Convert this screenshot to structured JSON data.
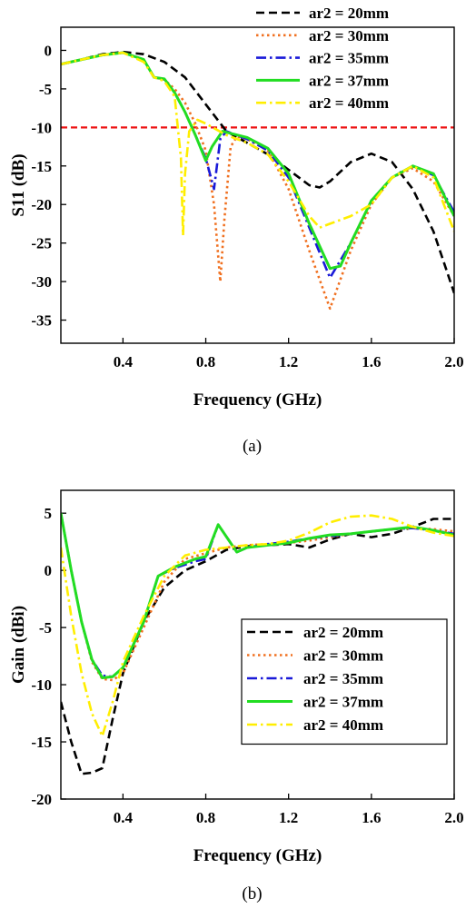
{
  "chart_data": [
    {
      "type": "line",
      "caption": "(a)",
      "xlabel": "Frequency (GHz)",
      "ylabel": "S11 (dB)",
      "xlim": [
        0.1,
        2.0
      ],
      "ylim": [
        -38,
        3
      ],
      "xticks": [
        0.4,
        0.8,
        1.2,
        1.6,
        2.0
      ],
      "xtick_labels": [
        "0.4",
        "0.8",
        "1.2",
        "1.6",
        "2.0"
      ],
      "yticks": [
        0,
        -5,
        -10,
        -15,
        -20,
        -25,
        -30,
        -35
      ],
      "ytick_labels": [
        "0",
        "-5",
        "-10",
        "-15",
        "-20",
        "-25",
        "-30",
        "-35"
      ],
      "legend_placement": "top-right outside plot",
      "grid": false,
      "reference_line": {
        "y": -10,
        "color": "#ee1111",
        "style": "dashed"
      },
      "series": [
        {
          "name": "ar2 = 20mm",
          "color": "#000000",
          "dash": "dash",
          "points": [
            [
              0.1,
              -1.8
            ],
            [
              0.2,
              -1.2
            ],
            [
              0.3,
              -0.5
            ],
            [
              0.4,
              -0.2
            ],
            [
              0.5,
              -0.5
            ],
            [
              0.6,
              -1.5
            ],
            [
              0.7,
              -3.5
            ],
            [
              0.8,
              -7.0
            ],
            [
              0.9,
              -10.5
            ],
            [
              1.0,
              -12.0
            ],
            [
              1.1,
              -13.5
            ],
            [
              1.2,
              -15.5
            ],
            [
              1.3,
              -17.5
            ],
            [
              1.35,
              -17.8
            ],
            [
              1.4,
              -17.0
            ],
            [
              1.5,
              -14.5
            ],
            [
              1.6,
              -13.4
            ],
            [
              1.7,
              -14.5
            ],
            [
              1.8,
              -18.0
            ],
            [
              1.9,
              -23.5
            ],
            [
              2.0,
              -31.5
            ]
          ]
        },
        {
          "name": "ar2 = 30mm",
          "color": "#f07020",
          "dash": "dot",
          "points": [
            [
              0.1,
              -1.8
            ],
            [
              0.2,
              -1.2
            ],
            [
              0.3,
              -0.6
            ],
            [
              0.4,
              -0.3
            ],
            [
              0.5,
              -1.2
            ],
            [
              0.55,
              -3.5
            ],
            [
              0.6,
              -3.8
            ],
            [
              0.65,
              -5.0
            ],
            [
              0.7,
              -6.8
            ],
            [
              0.75,
              -9.5
            ],
            [
              0.8,
              -13.0
            ],
            [
              0.84,
              -20.0
            ],
            [
              0.87,
              -30.0
            ],
            [
              0.89,
              -22.0
            ],
            [
              0.92,
              -12.5
            ],
            [
              0.95,
              -11.2
            ],
            [
              1.0,
              -11.5
            ],
            [
              1.1,
              -13.0
            ],
            [
              1.2,
              -18.0
            ],
            [
              1.3,
              -26.0
            ],
            [
              1.4,
              -33.5
            ],
            [
              1.5,
              -26.0
            ],
            [
              1.6,
              -20.0
            ],
            [
              1.7,
              -16.5
            ],
            [
              1.8,
              -15.3
            ],
            [
              1.9,
              -17.0
            ],
            [
              2.0,
              -21.5
            ]
          ]
        },
        {
          "name": "ar2 = 35mm",
          "color": "#1a1ad8",
          "dash": "dashdot",
          "points": [
            [
              0.1,
              -1.8
            ],
            [
              0.2,
              -1.2
            ],
            [
              0.3,
              -0.6
            ],
            [
              0.4,
              -0.3
            ],
            [
              0.5,
              -1.2
            ],
            [
              0.55,
              -3.5
            ],
            [
              0.6,
              -3.7
            ],
            [
              0.65,
              -5.5
            ],
            [
              0.7,
              -8.0
            ],
            [
              0.75,
              -11.0
            ],
            [
              0.8,
              -14.0
            ],
            [
              0.84,
              -18.0
            ],
            [
              0.87,
              -11.5
            ],
            [
              0.9,
              -10.5
            ],
            [
              1.0,
              -11.5
            ],
            [
              1.1,
              -13.0
            ],
            [
              1.2,
              -16.5
            ],
            [
              1.3,
              -23.0
            ],
            [
              1.4,
              -29.5
            ],
            [
              1.5,
              -25.0
            ],
            [
              1.6,
              -19.5
            ],
            [
              1.7,
              -16.5
            ],
            [
              1.8,
              -15.0
            ],
            [
              1.9,
              -16.2
            ],
            [
              2.0,
              -21.0
            ]
          ]
        },
        {
          "name": "ar2 = 37mm",
          "color": "#22dd22",
          "dash": "solid",
          "points": [
            [
              0.1,
              -1.8
            ],
            [
              0.2,
              -1.2
            ],
            [
              0.3,
              -0.6
            ],
            [
              0.4,
              -0.3
            ],
            [
              0.5,
              -1.2
            ],
            [
              0.55,
              -3.5
            ],
            [
              0.6,
              -3.7
            ],
            [
              0.65,
              -5.5
            ],
            [
              0.7,
              -8.0
            ],
            [
              0.75,
              -11.0
            ],
            [
              0.8,
              -14.3
            ],
            [
              0.83,
              -12.5
            ],
            [
              0.88,
              -10.5
            ],
            [
              1.0,
              -11.3
            ],
            [
              1.1,
              -12.7
            ],
            [
              1.2,
              -16.0
            ],
            [
              1.3,
              -22.5
            ],
            [
              1.4,
              -28.3
            ],
            [
              1.45,
              -28.0
            ],
            [
              1.5,
              -25.0
            ],
            [
              1.6,
              -19.5
            ],
            [
              1.7,
              -16.5
            ],
            [
              1.8,
              -15.0
            ],
            [
              1.9,
              -16.0
            ],
            [
              2.0,
              -21.5
            ]
          ]
        },
        {
          "name": "ar2 = 40mm",
          "color": "#ffee00",
          "dash": "dashdot",
          "points": [
            [
              0.1,
              -1.8
            ],
            [
              0.2,
              -1.2
            ],
            [
              0.3,
              -0.6
            ],
            [
              0.4,
              -0.3
            ],
            [
              0.5,
              -1.5
            ],
            [
              0.55,
              -3.5
            ],
            [
              0.6,
              -4.0
            ],
            [
              0.65,
              -6.0
            ],
            [
              0.68,
              -14.0
            ],
            [
              0.69,
              -24.0
            ],
            [
              0.7,
              -16.0
            ],
            [
              0.72,
              -10.5
            ],
            [
              0.76,
              -9.0
            ],
            [
              0.8,
              -9.5
            ],
            [
              0.9,
              -11.0
            ],
            [
              1.0,
              -12.0
            ],
            [
              1.1,
              -13.5
            ],
            [
              1.2,
              -17.0
            ],
            [
              1.3,
              -21.5
            ],
            [
              1.35,
              -23.0
            ],
            [
              1.4,
              -22.5
            ],
            [
              1.5,
              -21.5
            ],
            [
              1.6,
              -20.0
            ],
            [
              1.7,
              -16.5
            ],
            [
              1.8,
              -15.0
            ],
            [
              1.9,
              -16.5
            ],
            [
              2.0,
              -23.5
            ]
          ]
        }
      ]
    },
    {
      "type": "line",
      "caption": "(b)",
      "xlabel": "Frequency (GHz)",
      "ylabel": "Gain (dBi)",
      "xlim": [
        0.1,
        2.0
      ],
      "ylim": [
        -20,
        7
      ],
      "xticks": [
        0.4,
        0.8,
        1.2,
        1.6,
        2.0
      ],
      "xtick_labels": [
        "0.4",
        "0.8",
        "1.2",
        "1.6",
        "2.0"
      ],
      "yticks": [
        5,
        0,
        -5,
        -10,
        -15,
        -20
      ],
      "ytick_labels": [
        "5",
        "0",
        "-5",
        "-10",
        "-15",
        "-20"
      ],
      "legend_placement": "lower-right inside plot, boxed",
      "grid": false,
      "series": [
        {
          "name": "ar2 = 20mm",
          "color": "#000000",
          "dash": "dash",
          "points": [
            [
              0.1,
              -11.5
            ],
            [
              0.15,
              -15.0
            ],
            [
              0.2,
              -17.8
            ],
            [
              0.25,
              -17.7
            ],
            [
              0.3,
              -17.3
            ],
            [
              0.35,
              -13.0
            ],
            [
              0.4,
              -9.0
            ],
            [
              0.5,
              -4.5
            ],
            [
              0.6,
              -1.5
            ],
            [
              0.7,
              0.0
            ],
            [
              0.8,
              0.8
            ],
            [
              0.9,
              1.8
            ],
            [
              1.0,
              2.1
            ],
            [
              1.1,
              2.2
            ],
            [
              1.2,
              2.3
            ],
            [
              1.3,
              2.0
            ],
            [
              1.4,
              2.7
            ],
            [
              1.5,
              3.2
            ],
            [
              1.6,
              2.9
            ],
            [
              1.7,
              3.2
            ],
            [
              1.8,
              3.8
            ],
            [
              1.9,
              4.5
            ],
            [
              2.0,
              4.5
            ]
          ]
        },
        {
          "name": "ar2 = 30mm",
          "color": "#f07020",
          "dash": "dot",
          "points": [
            [
              0.1,
              5.0
            ],
            [
              0.15,
              0.0
            ],
            [
              0.2,
              -4.5
            ],
            [
              0.25,
              -8.0
            ],
            [
              0.3,
              -9.5
            ],
            [
              0.35,
              -9.6
            ],
            [
              0.4,
              -9.0
            ],
            [
              0.5,
              -5.0
            ],
            [
              0.6,
              -1.0
            ],
            [
              0.7,
              1.0
            ],
            [
              0.8,
              1.5
            ],
            [
              0.86,
              1.8
            ],
            [
              0.9,
              2.0
            ],
            [
              1.0,
              2.2
            ],
            [
              1.1,
              2.3
            ],
            [
              1.2,
              2.4
            ],
            [
              1.3,
              2.6
            ],
            [
              1.4,
              2.9
            ],
            [
              1.5,
              3.2
            ],
            [
              1.6,
              3.4
            ],
            [
              1.7,
              3.6
            ],
            [
              1.8,
              3.7
            ],
            [
              1.9,
              3.6
            ],
            [
              2.0,
              3.4
            ]
          ]
        },
        {
          "name": "ar2 = 35mm",
          "color": "#1a1ad8",
          "dash": "dashdot",
          "points": [
            [
              0.1,
              5.0
            ],
            [
              0.15,
              0.0
            ],
            [
              0.2,
              -4.5
            ],
            [
              0.25,
              -7.8
            ],
            [
              0.3,
              -9.2
            ],
            [
              0.35,
              -9.3
            ],
            [
              0.4,
              -8.5
            ],
            [
              0.5,
              -4.5
            ],
            [
              0.57,
              -0.5
            ],
            [
              0.65,
              0.2
            ],
            [
              0.75,
              0.8
            ],
            [
              0.8,
              1.0
            ],
            [
              0.86,
              4.0
            ],
            [
              0.95,
              1.6
            ],
            [
              1.0,
              2.0
            ],
            [
              1.1,
              2.3
            ],
            [
              1.2,
              2.5
            ],
            [
              1.3,
              2.8
            ],
            [
              1.4,
              3.0
            ],
            [
              1.5,
              3.2
            ],
            [
              1.6,
              3.4
            ],
            [
              1.7,
              3.6
            ],
            [
              1.8,
              3.7
            ],
            [
              1.9,
              3.5
            ],
            [
              2.0,
              3.2
            ]
          ]
        },
        {
          "name": "ar2 = 37mm",
          "color": "#22dd22",
          "dash": "solid",
          "points": [
            [
              0.1,
              5.0
            ],
            [
              0.15,
              0.0
            ],
            [
              0.2,
              -4.5
            ],
            [
              0.25,
              -7.8
            ],
            [
              0.3,
              -9.4
            ],
            [
              0.35,
              -9.3
            ],
            [
              0.4,
              -8.5
            ],
            [
              0.5,
              -4.5
            ],
            [
              0.57,
              -0.5
            ],
            [
              0.65,
              0.3
            ],
            [
              0.75,
              1.0
            ],
            [
              0.8,
              1.2
            ],
            [
              0.86,
              4.0
            ],
            [
              0.95,
              1.6
            ],
            [
              1.0,
              2.0
            ],
            [
              1.1,
              2.2
            ],
            [
              1.2,
              2.4
            ],
            [
              1.3,
              2.8
            ],
            [
              1.4,
              3.1
            ],
            [
              1.5,
              3.2
            ],
            [
              1.6,
              3.4
            ],
            [
              1.7,
              3.6
            ],
            [
              1.8,
              3.8
            ],
            [
              1.9,
              3.5
            ],
            [
              2.0,
              3.1
            ]
          ]
        },
        {
          "name": "ar2 = 40mm",
          "color": "#ffee00",
          "dash": "dashdot",
          "points": [
            [
              0.1,
              2.0
            ],
            [
              0.15,
              -4.0
            ],
            [
              0.2,
              -9.0
            ],
            [
              0.25,
              -12.5
            ],
            [
              0.3,
              -14.5
            ],
            [
              0.35,
              -11.5
            ],
            [
              0.4,
              -8.0
            ],
            [
              0.5,
              -4.0
            ],
            [
              0.6,
              -0.5
            ],
            [
              0.7,
              1.3
            ],
            [
              0.8,
              1.8
            ],
            [
              0.9,
              2.0
            ],
            [
              1.0,
              2.2
            ],
            [
              1.1,
              2.3
            ],
            [
              1.2,
              2.6
            ],
            [
              1.3,
              3.3
            ],
            [
              1.4,
              4.2
            ],
            [
              1.5,
              4.7
            ],
            [
              1.6,
              4.8
            ],
            [
              1.7,
              4.5
            ],
            [
              1.8,
              3.8
            ],
            [
              1.9,
              3.3
            ],
            [
              2.0,
              3.0
            ]
          ]
        }
      ]
    }
  ]
}
